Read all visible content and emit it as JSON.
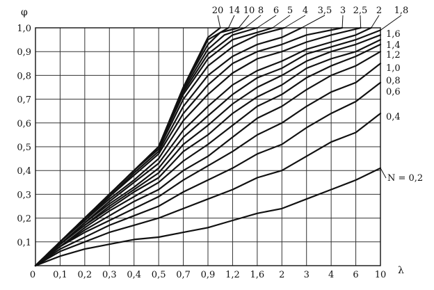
{
  "chart_data": {
    "type": "line",
    "title": "",
    "ylabel": "φ",
    "xlabel": "λ",
    "x_tick_labels": [
      "0",
      "0,1",
      "0,2",
      "0,3",
      "0,4",
      "0,5",
      "0,7",
      "0,9",
      "1,2",
      "1,6",
      "2",
      "3",
      "4",
      "6",
      "10"
    ],
    "x_tick_values": [
      0,
      0.1,
      0.2,
      0.3,
      0.4,
      0.5,
      0.7,
      0.9,
      1.2,
      1.6,
      2,
      3,
      4,
      6,
      10
    ],
    "y_tick_labels": [
      "0,1",
      "0,2",
      "0,3",
      "0,4",
      "0,5",
      "0,6",
      "0,7",
      "0,8",
      "0,9",
      "1,0"
    ],
    "y_tick_values": [
      0.1,
      0.2,
      0.3,
      0.4,
      0.5,
      0.6,
      0.7,
      0.8,
      0.9,
      1.0
    ],
    "xlim": [
      0,
      10
    ],
    "ylim": [
      0,
      1.0
    ],
    "grid": true,
    "series": [
      {
        "label": "N = 0,2",
        "x": [
          0,
          0.1,
          0.2,
          0.3,
          0.4,
          0.5,
          0.7,
          0.9,
          1.2,
          1.6,
          2,
          3,
          4,
          6,
          10
        ],
        "values": [
          0,
          0.04,
          0.07,
          0.09,
          0.11,
          0.12,
          0.14,
          0.16,
          0.19,
          0.22,
          0.24,
          0.28,
          0.32,
          0.36,
          0.41
        ]
      },
      {
        "label": "0,4",
        "x": [
          0,
          0.1,
          0.2,
          0.3,
          0.4,
          0.5,
          0.7,
          0.9,
          1.2,
          1.6,
          2,
          3,
          4,
          6,
          10
        ],
        "values": [
          0,
          0.06,
          0.1,
          0.14,
          0.17,
          0.2,
          0.24,
          0.28,
          0.32,
          0.37,
          0.4,
          0.46,
          0.52,
          0.56,
          0.64
        ]
      },
      {
        "label": "0,6",
        "x": [
          0,
          0.1,
          0.2,
          0.3,
          0.4,
          0.5,
          0.7,
          0.9,
          1.2,
          1.6,
          2,
          3,
          4,
          6,
          10
        ],
        "values": [
          0,
          0.07,
          0.12,
          0.17,
          0.21,
          0.25,
          0.31,
          0.36,
          0.41,
          0.47,
          0.51,
          0.58,
          0.64,
          0.69,
          0.77
        ]
      },
      {
        "label": "0,8",
        "x": [
          0,
          0.1,
          0.2,
          0.3,
          0.4,
          0.5,
          0.7,
          0.9,
          1.2,
          1.6,
          2,
          3,
          4,
          6,
          10
        ],
        "values": [
          0,
          0.08,
          0.14,
          0.19,
          0.24,
          0.29,
          0.36,
          0.42,
          0.48,
          0.55,
          0.6,
          0.67,
          0.73,
          0.77,
          0.85
        ]
      },
      {
        "label": "1,0",
        "x": [
          0,
          0.1,
          0.2,
          0.3,
          0.4,
          0.5,
          0.7,
          0.9,
          1.2,
          1.6,
          2,
          3,
          4,
          6,
          10
        ],
        "values": [
          0,
          0.08,
          0.15,
          0.21,
          0.27,
          0.32,
          0.4,
          0.46,
          0.54,
          0.62,
          0.67,
          0.74,
          0.8,
          0.84,
          0.9
        ]
      },
      {
        "label": "1,2",
        "x": [
          0,
          0.1,
          0.2,
          0.3,
          0.4,
          0.5,
          0.7,
          0.9,
          1.2,
          1.6,
          2,
          3,
          4,
          6,
          10
        ],
        "values": [
          0,
          0.08,
          0.16,
          0.23,
          0.29,
          0.35,
          0.44,
          0.51,
          0.59,
          0.67,
          0.72,
          0.79,
          0.84,
          0.88,
          0.93
        ]
      },
      {
        "label": "1,4",
        "x": [
          0,
          0.1,
          0.2,
          0.3,
          0.4,
          0.5,
          0.7,
          0.9,
          1.2,
          1.6,
          2,
          3,
          4,
          6,
          10
        ],
        "values": [
          0,
          0.09,
          0.17,
          0.24,
          0.31,
          0.37,
          0.48,
          0.55,
          0.64,
          0.71,
          0.76,
          0.83,
          0.87,
          0.9,
          0.95
        ]
      },
      {
        "label": "1,6",
        "x": [
          0,
          0.1,
          0.2,
          0.3,
          0.4,
          0.5,
          0.7,
          0.9,
          1.2,
          1.6,
          2,
          3,
          4,
          6,
          10
        ],
        "values": [
          0,
          0.09,
          0.17,
          0.25,
          0.32,
          0.39,
          0.51,
          0.59,
          0.68,
          0.75,
          0.8,
          0.86,
          0.9,
          0.93,
          0.97
        ]
      },
      {
        "label": "1,8",
        "x": [
          0,
          0.1,
          0.2,
          0.3,
          0.4,
          0.5,
          0.7,
          0.9,
          1.2,
          1.6,
          2,
          3,
          4,
          6,
          10
        ],
        "values": [
          0,
          0.09,
          0.18,
          0.26,
          0.33,
          0.41,
          0.54,
          0.63,
          0.72,
          0.79,
          0.83,
          0.89,
          0.92,
          0.95,
          0.99
        ]
      },
      {
        "label": "2",
        "x": [
          0,
          0.1,
          0.2,
          0.3,
          0.4,
          0.5,
          0.7,
          0.9,
          1.2,
          1.6,
          2,
          3,
          4,
          6,
          8.5
        ],
        "values": [
          0,
          0.09,
          0.18,
          0.27,
          0.35,
          0.43,
          0.57,
          0.67,
          0.76,
          0.82,
          0.86,
          0.91,
          0.94,
          0.97,
          1.0
        ]
      },
      {
        "label": "2,5",
        "x": [
          0,
          0.1,
          0.2,
          0.3,
          0.4,
          0.5,
          0.7,
          0.9,
          1.2,
          1.6,
          2,
          3,
          4,
          6.8
        ],
        "values": [
          0,
          0.1,
          0.19,
          0.28,
          0.36,
          0.45,
          0.61,
          0.72,
          0.81,
          0.87,
          0.9,
          0.94,
          0.97,
          1.0
        ]
      },
      {
        "label": "3",
        "x": [
          0,
          0.1,
          0.2,
          0.3,
          0.4,
          0.5,
          0.7,
          0.9,
          1.2,
          1.6,
          2,
          3,
          4.9
        ],
        "values": [
          0,
          0.1,
          0.19,
          0.29,
          0.38,
          0.47,
          0.64,
          0.76,
          0.85,
          0.9,
          0.93,
          0.97,
          1.0
        ]
      },
      {
        "label": "3,5",
        "x": [
          0,
          0.1,
          0.2,
          0.3,
          0.4,
          0.5,
          0.7,
          0.9,
          1.2,
          1.6,
          2,
          2.8
        ],
        "values": [
          0,
          0.1,
          0.2,
          0.29,
          0.39,
          0.48,
          0.67,
          0.8,
          0.88,
          0.93,
          0.96,
          1.0
        ]
      },
      {
        "label": "4",
        "x": [
          0,
          0.1,
          0.2,
          0.3,
          0.4,
          0.5,
          0.7,
          0.9,
          1.2,
          1.6,
          2.1
        ],
        "values": [
          0,
          0.1,
          0.2,
          0.3,
          0.4,
          0.49,
          0.7,
          0.84,
          0.92,
          0.97,
          1.0
        ]
      },
      {
        "label": "5",
        "x": [
          0,
          0.1,
          0.2,
          0.3,
          0.4,
          0.5,
          0.7,
          0.9,
          1.2,
          1.85
        ],
        "values": [
          0,
          0.1,
          0.2,
          0.3,
          0.4,
          0.5,
          0.72,
          0.87,
          0.95,
          1.0
        ]
      },
      {
        "label": "6",
        "x": [
          0,
          0.1,
          0.2,
          0.3,
          0.4,
          0.5,
          0.7,
          0.9,
          1.2,
          1.6
        ],
        "values": [
          0,
          0.1,
          0.2,
          0.3,
          0.4,
          0.5,
          0.73,
          0.89,
          0.97,
          1.0
        ]
      },
      {
        "label": "8",
        "x": [
          0,
          0.1,
          0.2,
          0.3,
          0.4,
          0.5,
          0.7,
          0.9,
          1.1,
          1.4
        ],
        "values": [
          0,
          0.1,
          0.2,
          0.3,
          0.4,
          0.5,
          0.74,
          0.91,
          0.97,
          1.0
        ]
      },
      {
        "label": "10",
        "x": [
          0,
          0.1,
          0.2,
          0.3,
          0.4,
          0.5,
          0.7,
          0.9,
          1.05,
          1.3
        ],
        "values": [
          0,
          0.1,
          0.2,
          0.3,
          0.4,
          0.5,
          0.75,
          0.93,
          0.98,
          1.0
        ]
      },
      {
        "label": "14",
        "x": [
          0,
          0.1,
          0.2,
          0.3,
          0.4,
          0.5,
          0.7,
          0.9,
          1.15
        ],
        "values": [
          0,
          0.1,
          0.2,
          0.3,
          0.4,
          0.5,
          0.75,
          0.95,
          1.0
        ]
      },
      {
        "label": "20",
        "x": [
          0,
          0.1,
          0.2,
          0.3,
          0.4,
          0.5,
          0.7,
          0.9,
          1.05
        ],
        "values": [
          0,
          0.1,
          0.2,
          0.3,
          0.4,
          0.5,
          0.75,
          0.96,
          1.0
        ]
      }
    ]
  }
}
